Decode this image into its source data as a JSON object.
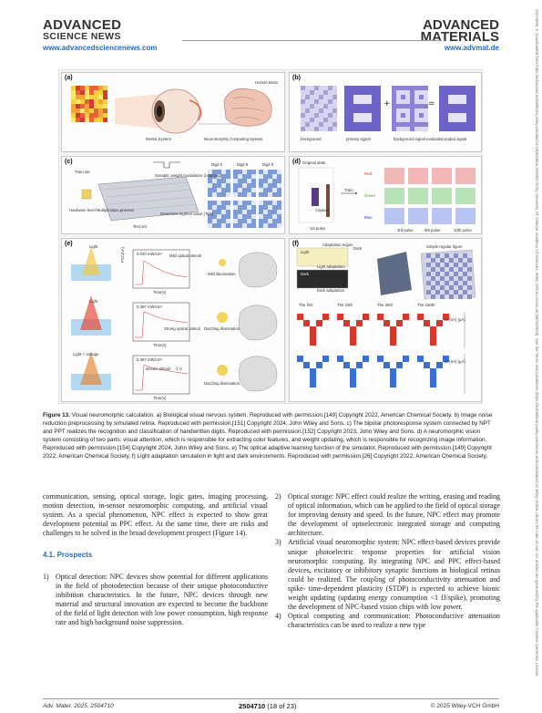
{
  "header": {
    "left_brand_line1": "ADVANCED",
    "left_brand_line2": "SCIENCE NEWS",
    "right_brand_line1": "ADVANCED",
    "right_brand_line2": "MATERIALS",
    "left_url": "www.advancedsciencenews.com",
    "right_url": "www.advmat.de"
  },
  "side_text": "15214095, 0, Downloaded from https://advanced.onlinelibrary.wiley.com/doi/10.1002/adma.202504710 by University Of Chinese Academy Of Sciences, Wiley Online Library on [08/10/2025]. See the Terms and Conditions (https://onlinelibrary.wiley.com/terms-and-conditions) on Wiley Online Library for rules of use; OA articles are governed by the applicable Creative Commons License",
  "figure": {
    "panel_a": {
      "label": "(a)",
      "retina": "Retina System",
      "brain": "Human Brain",
      "neuro": "Neuromorphic Computing System"
    },
    "panel_b": {
      "label": "(b)",
      "background": "background",
      "primary": "primary signal",
      "bg_signal": "background signal evaluation",
      "output": "output signal"
    },
    "panel_c": {
      "label": "(c)",
      "train": "Train set",
      "synaptic": "Synaptic weight modulation (Learning)",
      "hardware": "Hardware level Multiplication process",
      "test": "Test set",
      "determine": "Determine highest value (Test)",
      "digit0": "Digit 0",
      "digit8": "Digit 8",
      "digit9": "Digit 9"
    },
    "panel_d": {
      "label": "(d)",
      "original": "Original state",
      "capture": "Capture",
      "train": "Train",
      "red": "Red",
      "green": "Green",
      "blue": "Blue",
      "p1": "1st pulse",
      "p3": "3rd pulse",
      "p5": "5th pulse",
      "p10": "10th pulse"
    },
    "panel_e": {
      "label": "(e)",
      "light": "Light",
      "light_voltage": "Light + Voltage",
      "mild": "Mild illumination",
      "dazzling1": "Dazzling illumination",
      "dazzling2": "Dazzling illumination",
      "ylabel": "PSC(nA)",
      "xlabel": "Time(s)",
      "i1": "0.040 mW/cm²",
      "i2": "0.387 mW/cm²",
      "i3": "0.387 mW/cm²",
      "mild_stim": "Mild optical stimuli",
      "strong_stim": "Strong optical stimuli",
      "electric": "electric stimuli",
      "neg1v": "-1 V"
    },
    "panel_f": {
      "label": "(f)",
      "light": "Light",
      "dark": "Dark",
      "adapt_reg": "Adaptation region",
      "light_adapt": "Light adaptation",
      "dark_adapt": "Dark adaptation",
      "simple": "Simple regular figure",
      "first": "The first",
      "s10": "The 10th",
      "s30": "The 30th",
      "s150": "The 150th",
      "y1": "ΔI (nA) (μA)",
      "y2": "ΔI (nA) (μA)"
    }
  },
  "caption": {
    "label": "Figure 13.",
    "text": "Visual neuromorphic calculation. a) Biological visual nervous system. Reproduced with permission.[149] Copyright 2022, American Chemical Society. b) Image noise reduction preprocessing by simulated retina. Reproduced with permission.[151] Copyright 2024, John Wiley and Sons. c) The bipolar photoresponse system connected by NPT and PPT realizes the recognition and classification of handwritten digits. Reproduced with permission.[152] Copyright 2023, John Wiley and Sons. d) A neuromorphic vision system consisting of two parts: visual attention, which is responsible for extracting color features, and weight updating, which is responsible for recognizing image information. Reproduced with permission.[154] Copyright 2024, John Wiley and Sons. e) The optical adaptive learning function of the simulator. Reproduced with permission.[149] Copyright 2022, American Chemical Society. f) Light adaptation simulation in light and dark environments. Reproduced with permission.[26] Copyright 2022, American Chemical Society."
  },
  "body": {
    "left_intro": "communication, sensing, optical storage, logic gates, imaging processing, motion detection, in-sensor neuromorphic computing, and artificial visual system. As a special phenomenon, NPC effect is expected to show great development potential as PPC effect. At the same time, there are risks and challenges to be solved in the broad development prospect (Figure 14).",
    "section_title": "4.1. Prospects",
    "item1_num": "1)",
    "item1": "Optical detection: NPC devices show potential for different applications in the field of photodetection because of their unique photoconductive inhibition characteristics. In the future, NPC devices through new material and structural innovation are expected to become the backbone of the field of light detection with low power consumption, high response rate and high background noise suppression.",
    "item2_num": "2)",
    "item2": "Optical storage: NPC effect could realize the writing, erasing and reading of optical information, which can be applied to the field of optical storage for improving density and speed. In the future, NPC effect may promote the development of optoelectronic integrated storage and computing architecture.",
    "item3_num": "3)",
    "item3": "Artificial visual neuromorphic system: NPC effect-based devices provide unique photoelectric response properties for artificial vision neuromorphic computing. By integrating NPC and PPC effect-based devices, excitatory or inhibitory synaptic functions in biological retinas could be realized. The coupling of photoconductivity attenuation and spike- time-dependent plasticity (STDP) is expected to achieve bionic weight updating (updating energy consumption <1 fJ/spike), promoting the development of NPC-based vision chips with low power.",
    "item4_num": "4)",
    "item4": "Optical computing and communication: Photoconductive attenuation characteristics can be used to realize a new type"
  },
  "footer": {
    "journal": "Adv. Mater. 2025, 2504710",
    "page_code": "2504710",
    "page_of": "(18 of 23)",
    "copyright": "© 2025 Wiley-VCH GmbH"
  }
}
